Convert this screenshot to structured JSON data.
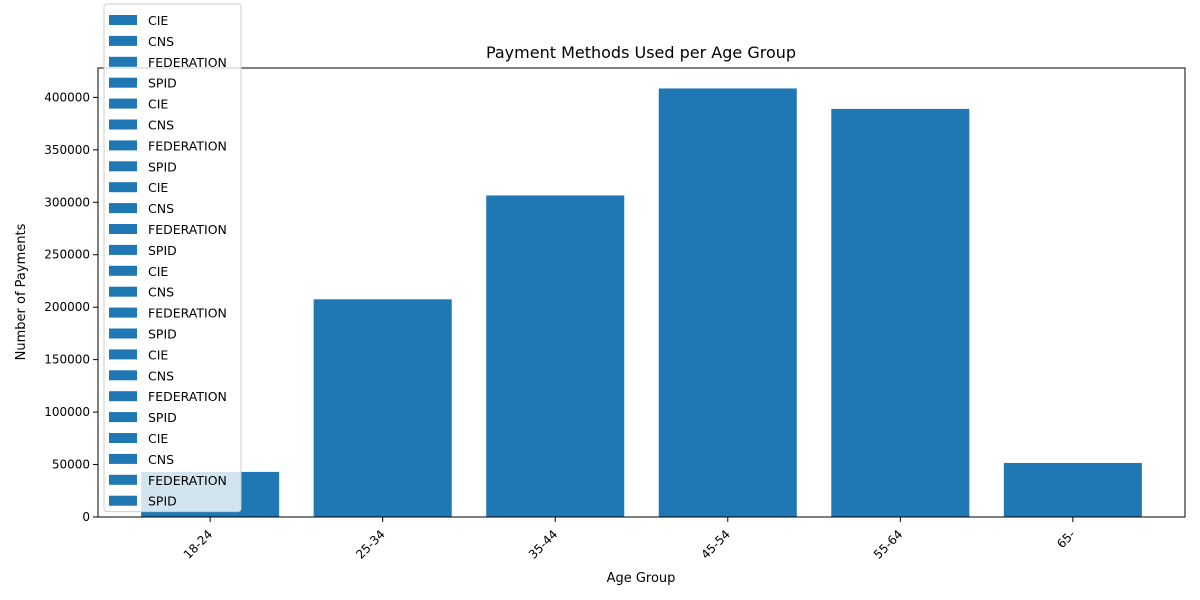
{
  "chart_data": {
    "type": "bar",
    "title": "Payment Methods Used per Age Group",
    "xlabel": "Age Group",
    "ylabel": "Number of Payments",
    "categories": [
      "18-24",
      "25-34",
      "35-44",
      "45-54",
      "55-64",
      "65-"
    ],
    "values": [
      43000,
      207500,
      306500,
      408500,
      389000,
      51500
    ],
    "ylim": [
      0,
      428000
    ],
    "yticks": [
      0,
      50000,
      100000,
      150000,
      200000,
      250000,
      300000,
      350000,
      400000
    ],
    "ytick_labels": [
      "0",
      "50000",
      "100000",
      "150000",
      "200000",
      "250000",
      "300000",
      "350000",
      "400000"
    ],
    "grid": false,
    "legend_position": "top-left",
    "legend": [
      "CIE",
      "CNS",
      "FEDERATION",
      "SPID",
      "CIE",
      "CNS",
      "FEDERATION",
      "SPID",
      "CIE",
      "CNS",
      "FEDERATION",
      "SPID",
      "CIE",
      "CNS",
      "FEDERATION",
      "SPID",
      "CIE",
      "CNS",
      "FEDERATION",
      "SPID",
      "CIE",
      "CNS",
      "FEDERATION",
      "SPID"
    ],
    "colors": {
      "bar": "#1f77b4",
      "axis": "#000000",
      "legend_border": "#cccccc"
    }
  }
}
